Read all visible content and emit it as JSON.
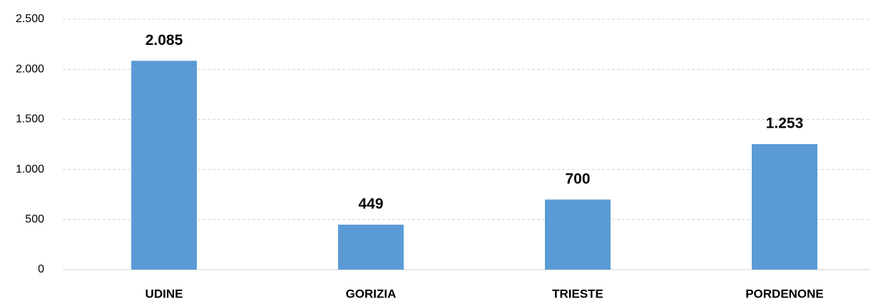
{
  "chart_data": {
    "type": "bar",
    "categories": [
      "UDINE",
      "GORIZIA",
      "TRIESTE",
      "PORDENONE"
    ],
    "values": [
      2085,
      449,
      700,
      1253
    ],
    "value_labels": [
      "2.085",
      "449",
      "700",
      "1.253"
    ],
    "color": "#5b9bd5",
    "ylim": [
      0,
      2500
    ],
    "yticks": [
      0,
      500,
      {
        "value": 1000,
        "label": "1.000"
      },
      {
        "value": 1500,
        "label": "1.500"
      },
      {
        "value": 2000,
        "label": "2.000"
      },
      {
        "value": 2500,
        "label": "2.500"
      }
    ],
    "grid": true
  }
}
